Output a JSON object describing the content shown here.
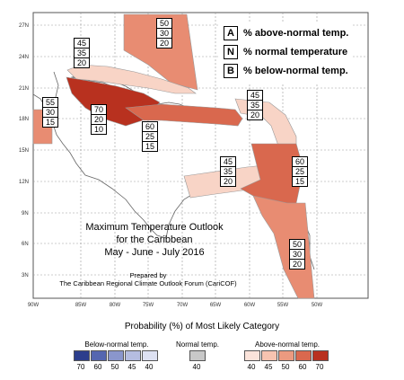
{
  "map": {
    "lat_labels": [
      "27N",
      "24N",
      "21N",
      "18N",
      "15N",
      "12N",
      "9N",
      "6N",
      "3N"
    ],
    "lon_labels": [
      "90W",
      "85W",
      "80W",
      "75W",
      "70W",
      "65W",
      "60W",
      "55W",
      "50W"
    ]
  },
  "legend_key": [
    {
      "letter": "A",
      "text": "% above-normal temp."
    },
    {
      "letter": "N",
      "text": "% normal temperature"
    },
    {
      "letter": "B",
      "text": "% below-normal temp."
    }
  ],
  "regions": [
    {
      "id": "bahamas-north",
      "values": [
        "50",
        "30",
        "20"
      ]
    },
    {
      "id": "bahamas-west",
      "values": [
        "45",
        "35",
        "20"
      ]
    },
    {
      "id": "belize",
      "values": [
        "55",
        "30",
        "15"
      ]
    },
    {
      "id": "cuba-jamaica",
      "values": [
        "70",
        "20",
        "10"
      ]
    },
    {
      "id": "hispaniola",
      "values": [
        "60",
        "25",
        "15"
      ]
    },
    {
      "id": "leeward-islands",
      "values": [
        "45",
        "35",
        "20"
      ]
    },
    {
      "id": "abc-islands",
      "values": [
        "45",
        "35",
        "20"
      ]
    },
    {
      "id": "windward-trinidad",
      "values": [
        "60",
        "25",
        "15"
      ]
    },
    {
      "id": "guianas",
      "values": [
        "50",
        "30",
        "20"
      ]
    }
  ],
  "title": {
    "line1": "Maximum Temperature Outlook",
    "line2": "for the Caribbean",
    "line3": "May - June - July 2016",
    "prepared1": "Prepared by",
    "prepared2": "The Caribbean Regional Climate Outlook Forum (CariCOF)"
  },
  "scale": {
    "title": "Probability (%) of Most Likely Category",
    "below_label": "Below-normal temp.",
    "normal_label": "Normal temp.",
    "above_label": "Above-normal temp.",
    "below_values": [
      "70",
      "60",
      "50",
      "45",
      "40"
    ],
    "normal_values": [
      "40"
    ],
    "above_values": [
      "40",
      "45",
      "50",
      "60",
      "70"
    ],
    "below_colors": [
      "#2c3e8c",
      "#5566b0",
      "#8a96cc",
      "#b5bde0",
      "#dde1f2"
    ],
    "normal_colors": [
      "#c8c8c8"
    ],
    "above_colors": [
      "#fbe3da",
      "#f6c3b0",
      "#ec9a80",
      "#d9684e",
      "#b8311f"
    ]
  }
}
